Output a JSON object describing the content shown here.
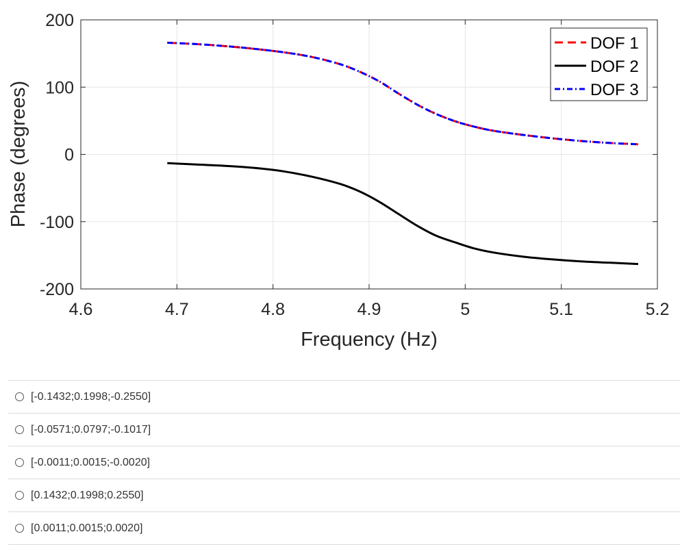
{
  "chart_data": {
    "type": "line",
    "title": "",
    "xlabel": "Frequency (Hz)",
    "ylabel": "Phase (degrees)",
    "xlim": [
      4.6,
      5.2
    ],
    "ylim": [
      -200,
      200
    ],
    "xticks": [
      4.6,
      4.7,
      4.8,
      4.9,
      5.0,
      5.1,
      5.2
    ],
    "xtick_labels": [
      "4.6",
      "4.7",
      "4.8",
      "4.9",
      "5",
      "5.1",
      "5.2"
    ],
    "yticks": [
      -200,
      -100,
      0,
      100,
      200
    ],
    "ytick_labels": [
      "-200",
      "-100",
      "0",
      "100",
      "200"
    ],
    "grid": true,
    "legend_position": "top-right",
    "series": [
      {
        "name": "DOF 1",
        "color": "#ff0000",
        "style": "dashed",
        "x": [
          4.69,
          4.72,
          4.75,
          4.78,
          4.81,
          4.84,
          4.87,
          4.89,
          4.91,
          4.93,
          4.95,
          4.97,
          4.99,
          5.01,
          5.03,
          5.06,
          5.09,
          5.12,
          5.15,
          5.18
        ],
        "y": [
          166,
          164,
          161,
          157,
          152,
          145,
          134,
          123,
          109,
          91,
          74,
          60,
          49,
          41,
          35,
          29,
          24,
          20,
          17,
          15
        ]
      },
      {
        "name": "DOF 2",
        "color": "#000000",
        "style": "solid",
        "x": [
          4.69,
          4.72,
          4.75,
          4.78,
          4.81,
          4.84,
          4.87,
          4.89,
          4.91,
          4.93,
          4.95,
          4.97,
          4.99,
          5.01,
          5.03,
          5.06,
          5.09,
          5.12,
          5.15,
          5.18
        ],
        "y": [
          -13,
          -15,
          -17,
          -20,
          -25,
          -33,
          -44,
          -55,
          -70,
          -88,
          -106,
          -121,
          -131,
          -140,
          -146,
          -152,
          -156,
          -159,
          -161,
          -163
        ]
      },
      {
        "name": "DOF 3",
        "color": "#0000ff",
        "style": "dashdot",
        "x": [
          4.69,
          4.72,
          4.75,
          4.78,
          4.81,
          4.84,
          4.87,
          4.89,
          4.91,
          4.93,
          4.95,
          4.97,
          4.99,
          5.01,
          5.03,
          5.06,
          5.09,
          5.12,
          5.15,
          5.18
        ],
        "y": [
          166,
          164,
          161,
          157,
          152,
          145,
          134,
          123,
          109,
          91,
          74,
          60,
          49,
          41,
          35,
          29,
          24,
          20,
          17,
          15
        ]
      }
    ]
  },
  "options": [
    {
      "label": "[-0.1432;0.1998;-0.2550]"
    },
    {
      "label": "[-0.0571;0.0797;-0.1017]"
    },
    {
      "label": "[-0.0011;0.0015;-0.0020]"
    },
    {
      "label": "[0.1432;0.1998;0.2550]"
    },
    {
      "label": "[0.0011;0.0015;0.0020]"
    }
  ]
}
